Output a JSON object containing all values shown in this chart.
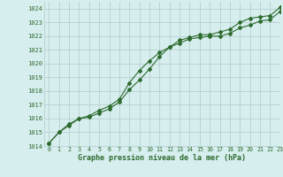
{
  "title": "Graphe pression niveau de la mer (hPa)",
  "background_color": "#d6eeee",
  "grid_color": "#b8d0d0",
  "line_color": "#2d6a2d",
  "xlim": [
    -0.5,
    23
  ],
  "ylim": [
    1014,
    1024.5
  ],
  "yticks": [
    1014,
    1015,
    1016,
    1017,
    1018,
    1019,
    1020,
    1021,
    1022,
    1023,
    1024
  ],
  "xticks": [
    0,
    1,
    2,
    3,
    4,
    5,
    6,
    7,
    8,
    9,
    10,
    11,
    12,
    13,
    14,
    15,
    16,
    17,
    18,
    19,
    20,
    21,
    22,
    23
  ],
  "series1": [
    1014.2,
    1015.0,
    1015.5,
    1016.0,
    1016.1,
    1016.4,
    1016.7,
    1017.2,
    1018.1,
    1018.8,
    1019.6,
    1020.5,
    1021.2,
    1021.5,
    1021.8,
    1021.9,
    1022.0,
    1022.0,
    1022.2,
    1022.6,
    1022.8,
    1023.1,
    1023.2,
    1023.8
  ],
  "series2": [
    1014.2,
    1015.0,
    1015.6,
    1016.0,
    1016.2,
    1016.6,
    1016.9,
    1017.4,
    1018.6,
    1019.5,
    1020.2,
    1020.8,
    1021.2,
    1021.7,
    1021.9,
    1022.1,
    1022.1,
    1022.3,
    1022.5,
    1023.0,
    1023.3,
    1023.4,
    1023.5,
    1024.1
  ]
}
